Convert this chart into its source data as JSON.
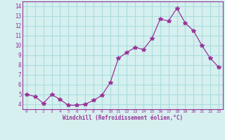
{
  "x": [
    0,
    1,
    2,
    3,
    4,
    5,
    6,
    7,
    8,
    9,
    10,
    11,
    12,
    13,
    14,
    15,
    16,
    17,
    18,
    19,
    20,
    21,
    22,
    23
  ],
  "y": [
    5.0,
    4.8,
    4.1,
    5.0,
    4.5,
    3.9,
    3.9,
    4.0,
    4.4,
    4.9,
    6.2,
    8.7,
    9.3,
    9.8,
    9.6,
    10.7,
    12.7,
    12.5,
    13.8,
    12.3,
    11.5,
    10.0,
    8.7,
    7.8
  ],
  "line_color": "#993399",
  "marker": "*",
  "marker_size": 4,
  "bg_color": "#d6f0ef",
  "grid_color": "#aadddd",
  "xlabel": "Windchill (Refroidissement éolien,°C)",
  "xlabel_color": "#993399",
  "tick_color": "#993399",
  "spine_color": "#993399",
  "xlim": [
    -0.5,
    23.5
  ],
  "ylim": [
    3.5,
    14.5
  ],
  "yticks": [
    4,
    5,
    6,
    7,
    8,
    9,
    10,
    11,
    12,
    13,
    14
  ],
  "xticks": [
    0,
    1,
    2,
    3,
    4,
    5,
    6,
    7,
    8,
    9,
    10,
    11,
    12,
    13,
    14,
    15,
    16,
    17,
    18,
    19,
    20,
    21,
    22,
    23
  ]
}
